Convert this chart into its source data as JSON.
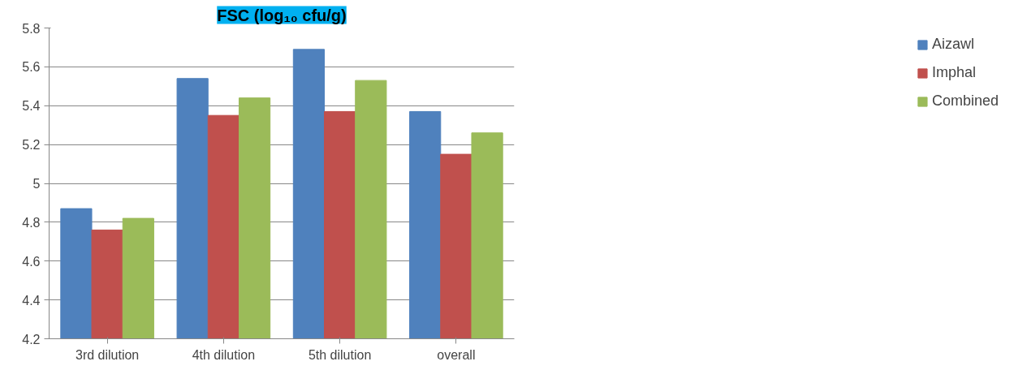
{
  "chart_data": {
    "type": "bar",
    "title": "FSC (log₁₀ cfu/g)",
    "categories": [
      "3rd dilution",
      "4th dilution",
      "5th dilution",
      "overall"
    ],
    "series": [
      {
        "name": "Aizawl",
        "color": "#4f81bd",
        "values": [
          4.87,
          5.54,
          5.69,
          5.37
        ]
      },
      {
        "name": "Imphal",
        "color": "#c0504d",
        "values": [
          4.76,
          5.35,
          5.37,
          5.15
        ]
      },
      {
        "name": "Combined",
        "color": "#9bbb59",
        "values": [
          4.82,
          5.44,
          5.53,
          5.26
        ]
      }
    ],
    "ylim": [
      4.2,
      5.8
    ],
    "yticks": [
      4.2,
      4.4,
      4.6,
      4.8,
      5,
      5.2,
      5.4,
      5.6,
      5.8
    ],
    "grid": "y",
    "legend": "right"
  }
}
